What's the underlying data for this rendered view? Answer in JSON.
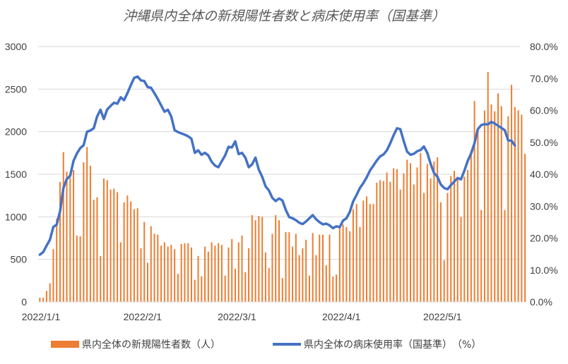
{
  "chart_data": {
    "type": "bar+line",
    "title": "沖縄県内全体の新規陽性者数と病床使用率（国基準）",
    "x_tick_labels": [
      "2022/1/1",
      "2022/2/1",
      "2022/3/1",
      "2022/4/1",
      "2022/5/1"
    ],
    "x_tick_days": [
      0,
      31,
      59,
      90,
      120
    ],
    "x_range_days": [
      0,
      142
    ],
    "y_left": {
      "ylim": [
        0,
        3000
      ],
      "ticks": [
        0,
        500,
        1000,
        1500,
        2000,
        2500,
        3000
      ],
      "tick_labels": [
        "0",
        "500",
        "1000",
        "1500",
        "2000",
        "2500",
        "3000"
      ]
    },
    "y_right": {
      "ylim": [
        0,
        80
      ],
      "ticks": [
        0,
        10,
        20,
        30,
        40,
        50,
        60,
        70,
        80
      ],
      "tick_labels": [
        "0.0%",
        "10.0%",
        "20.0%",
        "30.0%",
        "40.0%",
        "50.0%",
        "60.0%",
        "70.0%",
        "80.0%"
      ]
    },
    "grid": true,
    "legend_position": "bottom",
    "series": [
      {
        "name": "県内全体の新規陽性者数（人）",
        "type": "bar",
        "axis": "left",
        "color": "#ED7D31",
        "values": [
          50,
          50,
          130,
          220,
          620,
          980,
          1410,
          1760,
          1530,
          1460,
          1550,
          780,
          770,
          1640,
          1820,
          1600,
          1200,
          1230,
          540,
          1450,
          1430,
          1320,
          1330,
          1290,
          700,
          1170,
          1250,
          1180,
          1090,
          1100,
          630,
          940,
          460,
          890,
          800,
          790,
          660,
          700,
          650,
          670,
          620,
          330,
          680,
          690,
          690,
          640,
          260,
          540,
          300,
          650,
          590,
          700,
          660,
          690,
          670,
          310,
          640,
          740,
          390,
          700,
          780,
          350,
          630,
          1020,
          960,
          1010,
          1000,
          580,
          400,
          800,
          1020,
          960,
          280,
          820,
          820,
          650,
          800,
          550,
          630,
          730,
          310,
          810,
          550,
          790,
          790,
          430,
          790,
          300,
          320,
          870,
          910,
          880,
          830,
          1090,
          1150,
          880,
          1190,
          1240,
          1150,
          1150,
          1400,
          1430,
          1420,
          1520,
          1410,
          1570,
          1560,
          1320,
          1510,
          1670,
          1630,
          1380,
          1580,
          1750,
          1280,
          1620,
          1450,
          1650,
          1700,
          1170,
          490,
          1280,
          1480,
          1540,
          1470,
          1000,
          1470,
          1550,
          1780,
          2360,
          2050,
          1080,
          2250,
          2700,
          2320,
          2240,
          2450,
          2300,
          1080,
          2180,
          2550,
          2290,
          2250,
          2200,
          1740
        ]
      },
      {
        "name": "県内全体の病床使用率（国基準）　（%）",
        "type": "line",
        "axis": "right",
        "color": "#4472C4",
        "points": [
          [
            0,
            14.8
          ],
          [
            1,
            15.6
          ],
          [
            2,
            17.6
          ],
          [
            3,
            19.5
          ],
          [
            4,
            23.5
          ],
          [
            5,
            24.2
          ],
          [
            6,
            28.4
          ],
          [
            7,
            35.7
          ],
          [
            8,
            38.5
          ],
          [
            9,
            39.5
          ],
          [
            10,
            44.2
          ],
          [
            11,
            46.5
          ],
          [
            12,
            48.2
          ],
          [
            13,
            49.1
          ],
          [
            14,
            53.3
          ],
          [
            15,
            53.7
          ],
          [
            16,
            54.4
          ],
          [
            17,
            58.1
          ],
          [
            18,
            60.2
          ],
          [
            19,
            57.3
          ],
          [
            20,
            60.3
          ],
          [
            21,
            61.4
          ],
          [
            22,
            62.4
          ],
          [
            23,
            62.1
          ],
          [
            24,
            64.1
          ],
          [
            25,
            63.2
          ],
          [
            26,
            65.4
          ],
          [
            27,
            67.9
          ],
          [
            28,
            70.2
          ],
          [
            29,
            70.6
          ],
          [
            30,
            69.4
          ],
          [
            31,
            69.2
          ],
          [
            32,
            67.3
          ],
          [
            33,
            67.1
          ],
          [
            34,
            65.4
          ],
          [
            35,
            63.6
          ],
          [
            36,
            61.6
          ],
          [
            37,
            59.6
          ],
          [
            38,
            60.2
          ],
          [
            39,
            58.1
          ],
          [
            40,
            53.8
          ],
          [
            41,
            53.2
          ],
          [
            42,
            52.8
          ],
          [
            43,
            52.4
          ],
          [
            44,
            51.9
          ],
          [
            45,
            51.1
          ],
          [
            46,
            46.7
          ],
          [
            47,
            47.5
          ],
          [
            48,
            46.1
          ],
          [
            49,
            46.7
          ],
          [
            50,
            45.9
          ],
          [
            51,
            43.9
          ],
          [
            52,
            42.7
          ],
          [
            53,
            42.2
          ],
          [
            54,
            44.1
          ],
          [
            55,
            45.9
          ],
          [
            56,
            48.6
          ],
          [
            57,
            48.4
          ],
          [
            58,
            50.3
          ],
          [
            59,
            46.3
          ],
          [
            60,
            46.7
          ],
          [
            61,
            45.2
          ],
          [
            62,
            42.2
          ],
          [
            63,
            43.1
          ],
          [
            64,
            45.2
          ],
          [
            65,
            41.4
          ],
          [
            66,
            39.2
          ],
          [
            67,
            36.2
          ],
          [
            68,
            34.9
          ],
          [
            69,
            32.6
          ],
          [
            70,
            31.6
          ],
          [
            71,
            32.4
          ],
          [
            72,
            31.8
          ],
          [
            73,
            28.8
          ],
          [
            74,
            26.6
          ],
          [
            75,
            26.2
          ],
          [
            76,
            25.6
          ],
          [
            77,
            24.8
          ],
          [
            78,
            24.4
          ],
          [
            79,
            25.2
          ],
          [
            80,
            26.2
          ],
          [
            81,
            27.2
          ],
          [
            82,
            25.9
          ],
          [
            83,
            25.0
          ],
          [
            84,
            24.3
          ],
          [
            85,
            24.5
          ],
          [
            86,
            24.0
          ],
          [
            87,
            23.1
          ],
          [
            88,
            23.7
          ],
          [
            89,
            23.4
          ],
          [
            90,
            25.5
          ],
          [
            91,
            26.2
          ],
          [
            92,
            28.2
          ],
          [
            93,
            31.5
          ],
          [
            94,
            33.5
          ],
          [
            95,
            35.7
          ],
          [
            96,
            37.2
          ],
          [
            97,
            39.0
          ],
          [
            98,
            41.2
          ],
          [
            99,
            42.7
          ],
          [
            100,
            44.3
          ],
          [
            101,
            45.6
          ],
          [
            102,
            46.2
          ],
          [
            103,
            47.5
          ],
          [
            104,
            49.7
          ],
          [
            105,
            52.2
          ],
          [
            106,
            54.4
          ],
          [
            107,
            54.1
          ],
          [
            108,
            50.4
          ],
          [
            109,
            47.1
          ],
          [
            110,
            46.1
          ],
          [
            111,
            46.4
          ],
          [
            112,
            47.2
          ],
          [
            113,
            47.6
          ],
          [
            114,
            48.7
          ],
          [
            115,
            46.7
          ],
          [
            116,
            43.2
          ],
          [
            117,
            40.4
          ],
          [
            118,
            39.2
          ],
          [
            119,
            36.8
          ],
          [
            120,
            35.7
          ],
          [
            121,
            35.3
          ],
          [
            122,
            36.6
          ],
          [
            123,
            37.7
          ],
          [
            124,
            38.8
          ],
          [
            125,
            38.4
          ],
          [
            126,
            41.1
          ],
          [
            127,
            44.2
          ],
          [
            128,
            46.5
          ],
          [
            129,
            49.7
          ],
          [
            130,
            54.1
          ],
          [
            131,
            55.4
          ],
          [
            132,
            55.7
          ],
          [
            133,
            55.6
          ],
          [
            134,
            56.4
          ],
          [
            135,
            55.9
          ],
          [
            136,
            55.2
          ],
          [
            137,
            54.5
          ],
          [
            138,
            53.8
          ],
          [
            139,
            50.6
          ],
          [
            140,
            50.5
          ],
          [
            141,
            49.0
          ]
        ]
      }
    ]
  }
}
